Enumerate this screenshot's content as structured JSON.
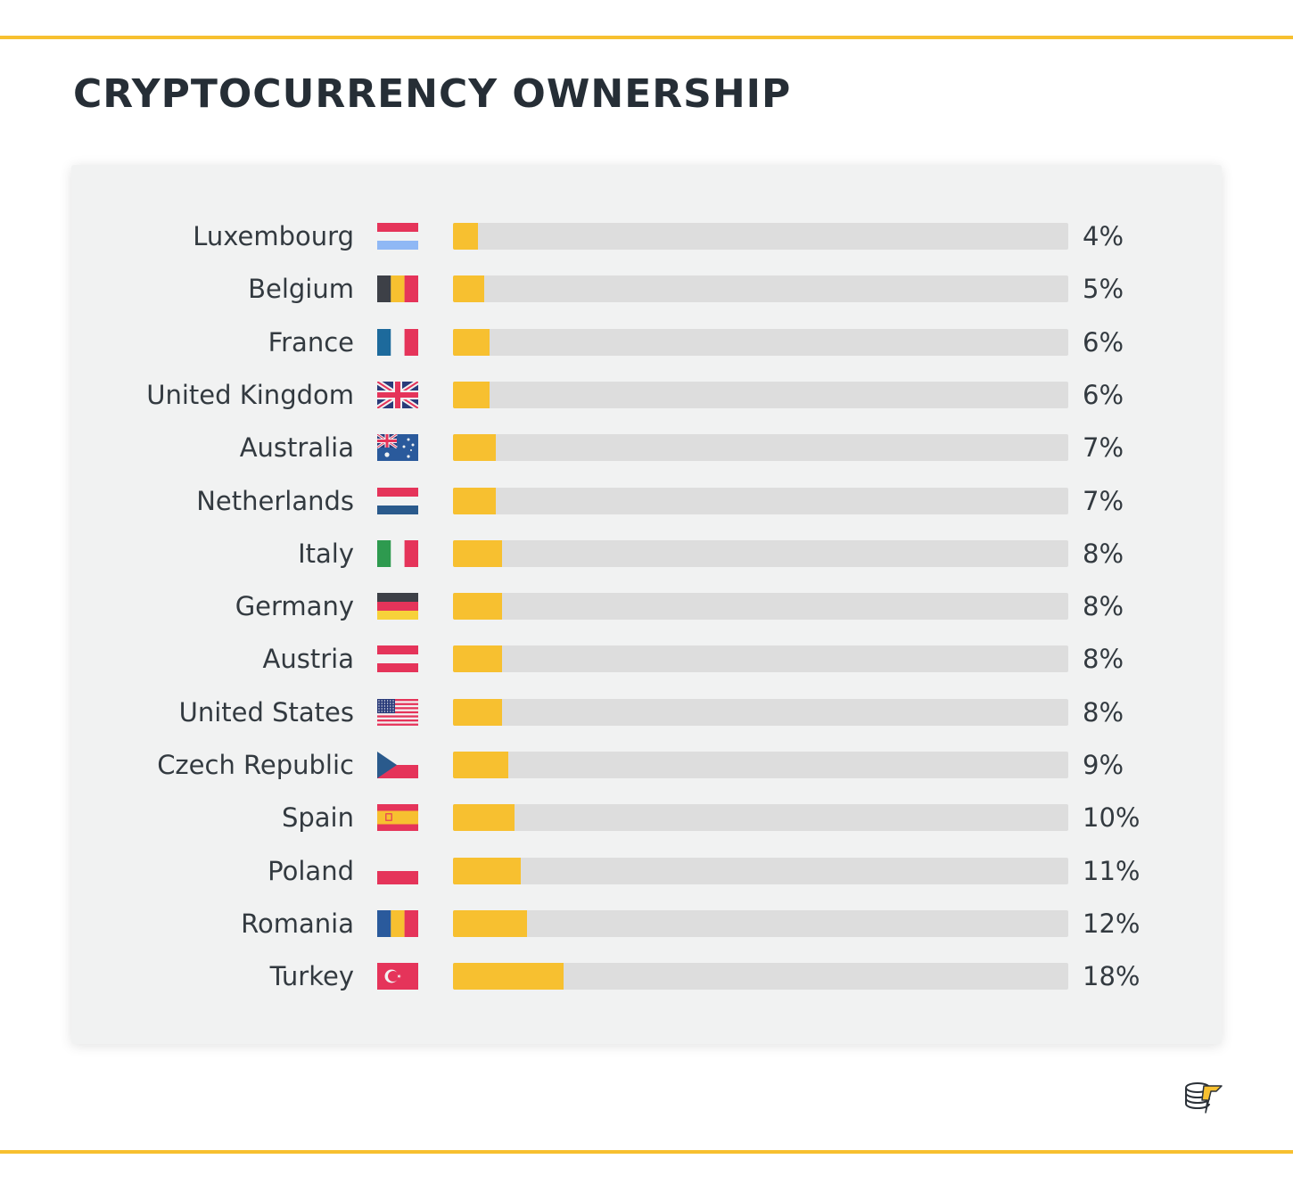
{
  "title": "CRYPTOCURRENCY OWNERSHIP",
  "colors": {
    "accent": "#f7c030",
    "track": "#dddddd",
    "panel": "#f1f2f2",
    "text": "#262e36"
  },
  "chart_data": {
    "type": "bar",
    "orientation": "horizontal",
    "title": "CRYPTOCURRENCY OWNERSHIP",
    "unit": "%",
    "xlim": [
      0,
      100
    ],
    "categories": [
      "Luxembourg",
      "Belgium",
      "France",
      "United Kingdom",
      "Australia",
      "Netherlands",
      "Italy",
      "Germany",
      "Austria",
      "United States",
      "Czech Republic",
      "Spain",
      "Poland",
      "Romania",
      "Turkey"
    ],
    "values": [
      4,
      5,
      6,
      6,
      7,
      7,
      8,
      8,
      8,
      8,
      9,
      10,
      11,
      12,
      18
    ],
    "value_labels": [
      "4%",
      "5%",
      "6%",
      "6%",
      "7%",
      "7%",
      "8%",
      "8%",
      "8%",
      "8%",
      "9%",
      "10%",
      "11%",
      "12%",
      "18%"
    ],
    "flags": [
      "luxembourg-flag-icon",
      "belgium-flag-icon",
      "france-flag-icon",
      "united-kingdom-flag-icon",
      "australia-flag-icon",
      "netherlands-flag-icon",
      "italy-flag-icon",
      "germany-flag-icon",
      "austria-flag-icon",
      "united-states-flag-icon",
      "czech-republic-flag-icon",
      "spain-flag-icon",
      "poland-flag-icon",
      "romania-flag-icon",
      "turkey-flag-icon"
    ]
  },
  "logo": "coin-stack-logo-icon"
}
